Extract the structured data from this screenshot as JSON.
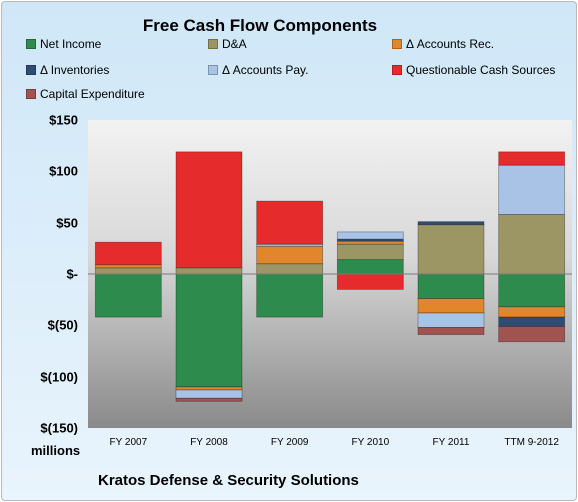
{
  "chart_data": {
    "type": "bar",
    "stacked": true,
    "title": "Free Cash Flow Components",
    "units_label": "millions",
    "footer": "Kratos Defense & Security Solutions",
    "categories": [
      "FY 2007",
      "FY 2008",
      "FY 2009",
      "FY 2010",
      "FY 2011",
      "TTM 9-2012"
    ],
    "ylim": [
      -150,
      150
    ],
    "yticks": [
      150,
      100,
      50,
      0,
      -50,
      -100,
      -150
    ],
    "ytick_labels": [
      "$150",
      "$100",
      "$50",
      "$-",
      "$(50)",
      "$(100)",
      "$(150)"
    ],
    "grid": false,
    "legend_position": "top",
    "series": [
      {
        "name": "Net Income",
        "color": "#2e8b4e",
        "values": [
          -42,
          -110,
          -42,
          14,
          -24,
          -32
        ]
      },
      {
        "name": "D&A",
        "color": "#9c9664",
        "values": [
          6,
          6,
          10,
          15,
          48,
          58
        ]
      },
      {
        "name": "Δ Accounts Rec.",
        "color": "#e2862c",
        "values": [
          3,
          -3,
          17,
          3,
          -14,
          -10
        ]
      },
      {
        "name": "Δ Inventories",
        "color": "#2f4d74",
        "values": [
          0,
          0,
          0,
          2,
          3,
          -9
        ]
      },
      {
        "name": "Δ Accounts Pay.",
        "color": "#a9c3e6",
        "values": [
          0,
          -8,
          2,
          7,
          -14,
          48
        ]
      },
      {
        "name": "Questionable Cash Sources",
        "color": "#e52b2b",
        "values": [
          22,
          113,
          42,
          -15,
          0,
          13
        ]
      },
      {
        "name": "Capital Expenditure",
        "color": "#a05350",
        "values": [
          0,
          -3,
          0,
          0,
          -7,
          -15
        ]
      }
    ]
  }
}
